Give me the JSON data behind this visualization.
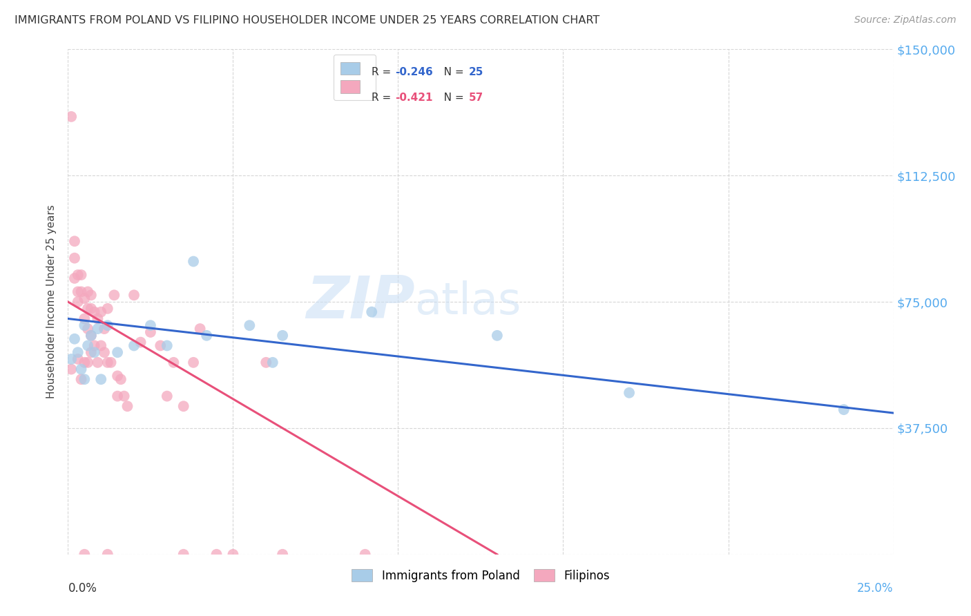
{
  "title": "IMMIGRANTS FROM POLAND VS FILIPINO HOUSEHOLDER INCOME UNDER 25 YEARS CORRELATION CHART",
  "source": "Source: ZipAtlas.com",
  "ylabel": "Householder Income Under 25 years",
  "y_ticks": [
    0,
    37500,
    75000,
    112500,
    150000
  ],
  "y_tick_labels": [
    "",
    "$37,500",
    "$75,000",
    "$112,500",
    "$150,000"
  ],
  "x_min": 0.0,
  "x_max": 0.25,
  "y_min": 0,
  "y_max": 150000,
  "blue_color": "#a8cce8",
  "pink_color": "#f4a8be",
  "blue_line_color": "#3366cc",
  "pink_line_color": "#e8507a",
  "right_label_color": "#55aaee",
  "watermark_color": "#c8dff0",
  "poland_x": [
    0.001,
    0.002,
    0.003,
    0.004,
    0.005,
    0.005,
    0.006,
    0.007,
    0.008,
    0.009,
    0.01,
    0.012,
    0.015,
    0.02,
    0.025,
    0.03,
    0.038,
    0.042,
    0.055,
    0.062,
    0.065,
    0.092,
    0.13,
    0.17,
    0.235
  ],
  "poland_y": [
    58000,
    64000,
    60000,
    55000,
    68000,
    52000,
    62000,
    65000,
    60000,
    67000,
    52000,
    68000,
    60000,
    62000,
    68000,
    62000,
    87000,
    65000,
    68000,
    57000,
    65000,
    72000,
    65000,
    48000,
    43000
  ],
  "filipino_x": [
    0.001,
    0.001,
    0.002,
    0.002,
    0.002,
    0.003,
    0.003,
    0.003,
    0.003,
    0.004,
    0.004,
    0.004,
    0.005,
    0.005,
    0.005,
    0.006,
    0.006,
    0.006,
    0.006,
    0.007,
    0.007,
    0.007,
    0.007,
    0.008,
    0.008,
    0.009,
    0.009,
    0.01,
    0.01,
    0.011,
    0.011,
    0.012,
    0.012,
    0.013,
    0.014,
    0.015,
    0.015,
    0.016,
    0.017,
    0.018,
    0.02,
    0.022,
    0.025,
    0.028,
    0.03,
    0.032,
    0.035,
    0.038,
    0.04,
    0.045,
    0.05,
    0.06,
    0.065,
    0.09,
    0.005,
    0.012,
    0.035
  ],
  "filipino_y": [
    130000,
    55000,
    82000,
    88000,
    93000,
    58000,
    75000,
    78000,
    83000,
    52000,
    78000,
    83000,
    57000,
    70000,
    76000,
    57000,
    67000,
    73000,
    78000,
    60000,
    73000,
    77000,
    65000,
    62000,
    72000,
    57000,
    70000,
    62000,
    72000,
    60000,
    67000,
    57000,
    73000,
    57000,
    77000,
    47000,
    53000,
    52000,
    47000,
    44000,
    77000,
    63000,
    66000,
    62000,
    47000,
    57000,
    44000,
    57000,
    67000,
    0,
    0,
    57000,
    0,
    0,
    0,
    0,
    0
  ]
}
